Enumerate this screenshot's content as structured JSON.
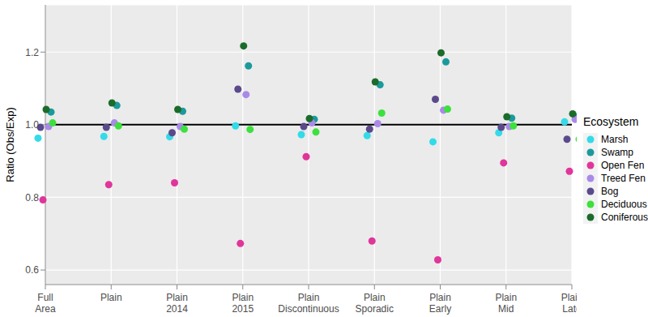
{
  "chart_data": {
    "type": "scatter",
    "y_label": "Ratio (Obs/Exp)",
    "legend_title": "Ecosystem",
    "legend": "right",
    "grid": true,
    "hline": 1,
    "categories": [
      "Full Area",
      "Plain",
      "Plain 2014",
      "Plain 2015",
      "Plain Discontinuous",
      "Plain Sporadic",
      "Plain Early",
      "Plain Mid",
      "Plain Late"
    ],
    "ylim": [
      0.56,
      1.33
    ],
    "yticks": [
      0.6,
      0.8,
      {
        "value": 1,
        "label": "1.0"
      },
      1.2
    ],
    "series": [
      {
        "name": "Marsh",
        "color": "#33dbe8",
        "values": [
          0.963,
          0.968,
          0.967,
          0.997,
          0.973,
          0.97,
          0.953,
          0.978,
          1.008
        ]
      },
      {
        "name": "Swamp",
        "color": "#1b9a9c",
        "values": [
          1.035,
          1.053,
          1.037,
          1.162,
          1.015,
          1.11,
          1.173,
          1.018,
          1.023
        ]
      },
      {
        "name": "Open Fen",
        "color": "#e0359a",
        "values": [
          0.793,
          0.835,
          0.84,
          0.673,
          0.912,
          0.68,
          0.628,
          0.895,
          0.872
        ]
      },
      {
        "name": "Treed Fen",
        "color": "#a98ae8",
        "values": [
          0.995,
          1.005,
          0.995,
          1.083,
          1.005,
          1.003,
          1.04,
          0.995,
          1.015
        ]
      },
      {
        "name": "Bog",
        "color": "#5a4a8c",
        "values": [
          0.993,
          0.993,
          0.978,
          1.098,
          0.995,
          0.988,
          1.07,
          0.993,
          0.96
        ]
      },
      {
        "name": "Deciduous",
        "color": "#3de03d",
        "values": [
          1.005,
          0.997,
          0.988,
          0.987,
          0.98,
          1.032,
          1.043,
          0.997,
          0.96
        ]
      },
      {
        "name": "Coniferous",
        "color": "#1b6b2a",
        "values": [
          1.042,
          1.06,
          1.042,
          1.217,
          1.017,
          1.118,
          1.198,
          1.022,
          1.03
        ]
      }
    ]
  }
}
